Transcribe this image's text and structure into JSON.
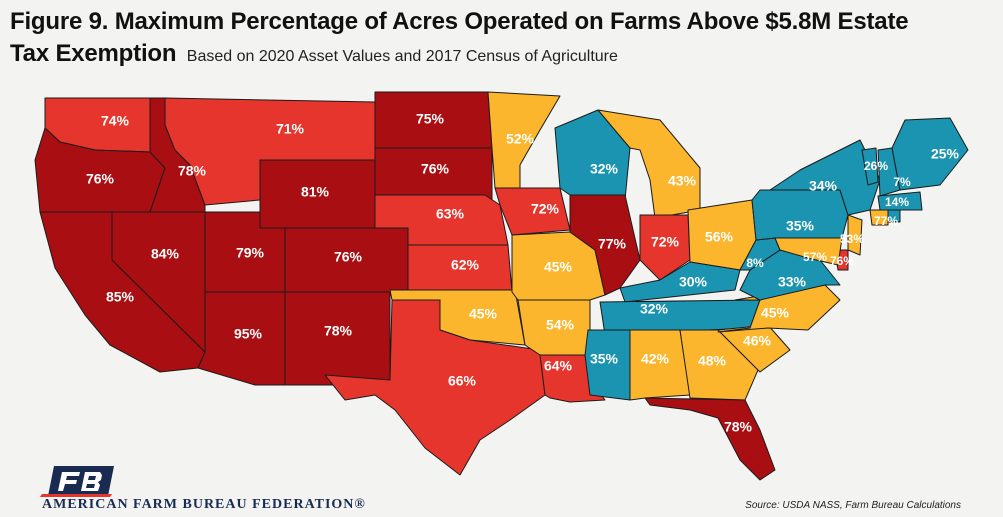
{
  "title": {
    "line1": "Figure 9. Maximum Percentage of Acres Operated on Farms Above $5.8M Estate",
    "line2": "Tax Exemption",
    "subtitle": "Based on 2020 Asset Values and 2017 Census of Agriculture"
  },
  "colors": {
    "dark_red": "#a90f12",
    "red": "#e5352c",
    "yellow": "#fbb62d",
    "teal": "#1a94b0",
    "background": "#f3f3f1"
  },
  "states": [
    {
      "state": "WA",
      "label": "74%",
      "color": "red"
    },
    {
      "state": "OR",
      "label": "76%",
      "color": "dark_red"
    },
    {
      "state": "CA",
      "label": "85%",
      "color": "dark_red"
    },
    {
      "state": "ID",
      "label": "78%",
      "color": "dark_red"
    },
    {
      "state": "NV",
      "label": "84%",
      "color": "dark_red"
    },
    {
      "state": "MT",
      "label": "71%",
      "color": "red"
    },
    {
      "state": "WY",
      "label": "81%",
      "color": "dark_red"
    },
    {
      "state": "UT",
      "label": "79%",
      "color": "dark_red"
    },
    {
      "state": "AZ",
      "label": "95%",
      "color": "dark_red"
    },
    {
      "state": "CO",
      "label": "76%",
      "color": "dark_red"
    },
    {
      "state": "NM",
      "label": "78%",
      "color": "dark_red"
    },
    {
      "state": "ND",
      "label": "75%",
      "color": "dark_red"
    },
    {
      "state": "SD",
      "label": "76%",
      "color": "dark_red"
    },
    {
      "state": "NE",
      "label": "63%",
      "color": "red"
    },
    {
      "state": "KS",
      "label": "62%",
      "color": "red"
    },
    {
      "state": "OK",
      "label": "45%",
      "color": "yellow"
    },
    {
      "state": "TX",
      "label": "66%",
      "color": "red"
    },
    {
      "state": "MN",
      "label": "52%",
      "color": "yellow"
    },
    {
      "state": "IA",
      "label": "72%",
      "color": "red"
    },
    {
      "state": "MO",
      "label": "45%",
      "color": "yellow"
    },
    {
      "state": "AR",
      "label": "54%",
      "color": "yellow"
    },
    {
      "state": "LA",
      "label": "64%",
      "color": "red"
    },
    {
      "state": "WI",
      "label": "32%",
      "color": "teal"
    },
    {
      "state": "IL",
      "label": "77%",
      "color": "dark_red"
    },
    {
      "state": "MI",
      "label": "43%",
      "color": "yellow"
    },
    {
      "state": "IN",
      "label": "72%",
      "color": "red"
    },
    {
      "state": "OH",
      "label": "56%",
      "color": "yellow"
    },
    {
      "state": "KY",
      "label": "30%",
      "color": "teal"
    },
    {
      "state": "TN",
      "label": "32%",
      "color": "teal"
    },
    {
      "state": "MS",
      "label": "35%",
      "color": "teal"
    },
    {
      "state": "AL",
      "label": "42%",
      "color": "yellow"
    },
    {
      "state": "GA",
      "label": "48%",
      "color": "yellow"
    },
    {
      "state": "FL",
      "label": "78%",
      "color": "dark_red"
    },
    {
      "state": "SC",
      "label": "46%",
      "color": "yellow"
    },
    {
      "state": "NC",
      "label": "45%",
      "color": "yellow"
    },
    {
      "state": "VA",
      "label": "33%",
      "color": "teal"
    },
    {
      "state": "WV",
      "label": "8%",
      "color": "teal"
    },
    {
      "state": "PA",
      "label": "35%",
      "color": "teal"
    },
    {
      "state": "NY",
      "label": "34%",
      "color": "teal"
    },
    {
      "state": "VT",
      "label": "26%",
      "color": "teal"
    },
    {
      "state": "NH",
      "label": "7%",
      "color": "teal"
    },
    {
      "state": "ME",
      "label": "25%",
      "color": "teal"
    },
    {
      "state": "MA",
      "label": "14%",
      "color": "teal"
    },
    {
      "state": "CT",
      "label": "77%",
      "color": "yellow"
    },
    {
      "state": "NJ",
      "label": "53%",
      "color": "yellow"
    },
    {
      "state": "DE",
      "label": "76%",
      "color": "red"
    },
    {
      "state": "MD",
      "label": "57%",
      "color": "yellow"
    },
    {
      "state": "RI",
      "label": "",
      "color": "teal"
    }
  ],
  "organization": "AMERICAN FARM BUREAU FEDERATION®",
  "logo_text": "FB",
  "source": "Source: USDA NASS, Farm Bureau Calculations"
}
